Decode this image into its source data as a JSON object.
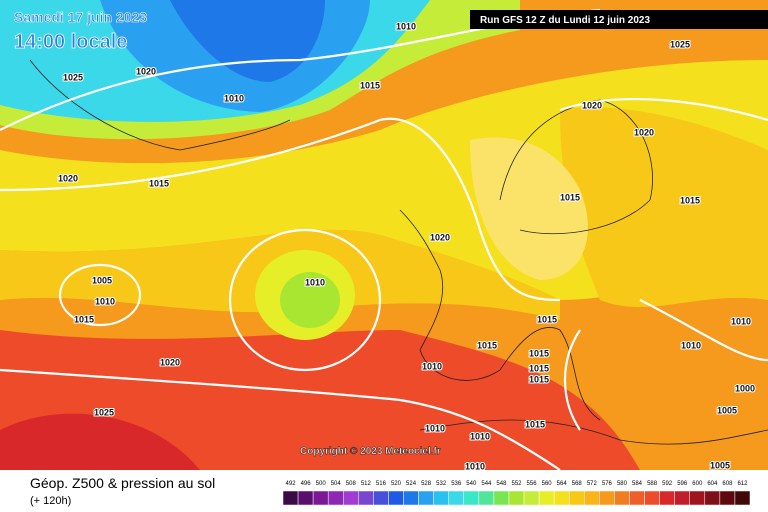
{
  "header": {
    "date": "Samedi 17 juin 2023",
    "time": "14:00 locale",
    "run": "Run GFS 12 Z du Lundi 12 juin 2023"
  },
  "isobar_labels": [
    "1010",
    "1025",
    "1025",
    "1020",
    "1010",
    "1015",
    "1020",
    "1020",
    "1020",
    "1015",
    "1015",
    "1015",
    "1020",
    "1005",
    "1010",
    "1010",
    "1015",
    "1015",
    "1010",
    "1015",
    "1010",
    "1015",
    "1020",
    "1010",
    "1015",
    "1015",
    "1000",
    "1025",
    "1005",
    "1015",
    "1010",
    "1010",
    "1010",
    "1005"
  ],
  "copyright": "Copyright © 2023 Meteociel.fr",
  "footer": {
    "title": "Géop. Z500 & pression au sol",
    "subtitle": "(+ 120h)"
  },
  "legend": {
    "values": [
      492,
      496,
      500,
      504,
      508,
      512,
      516,
      520,
      524,
      528,
      532,
      536,
      540,
      544,
      548,
      552,
      556,
      560,
      564,
      568,
      572,
      576,
      580,
      584,
      588,
      592,
      596,
      600,
      604,
      608,
      612
    ],
    "colors": [
      "#3c0a46",
      "#5a0f6e",
      "#7a1896",
      "#8c28b4",
      "#a03cd2",
      "#7846d2",
      "#4650dc",
      "#1e5ae6",
      "#1e78e8",
      "#2aa0f0",
      "#2ac0f0",
      "#3ad8e8",
      "#3ce6c8",
      "#50e69a",
      "#78e650",
      "#a8e632",
      "#c6ec3a",
      "#e6ee28",
      "#f5e01e",
      "#f8c818",
      "#f8b418",
      "#f59a1c",
      "#f27c20",
      "#ee5e28",
      "#ee4b2b",
      "#d9282a",
      "#c01e2a",
      "#a01420",
      "#801018",
      "#600810",
      "#400808"
    ]
  }
}
